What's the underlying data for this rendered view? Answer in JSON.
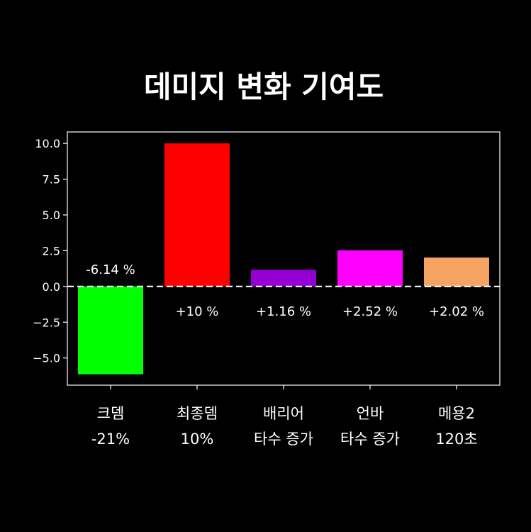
{
  "chart_data": {
    "type": "bar",
    "title": "데미지 변화 기여도",
    "xlabel": "",
    "ylabel": "",
    "categories": [
      [
        "크뎀",
        "-21%"
      ],
      [
        "최종뎀",
        "10%"
      ],
      [
        "배리어",
        "타수 증가"
      ],
      [
        "언바",
        "타수 증가"
      ],
      [
        "메용2",
        "120초"
      ]
    ],
    "values": [
      -6.14,
      10,
      1.16,
      2.52,
      2.02
    ],
    "data_labels": [
      "-6.14 %",
      "+10 %",
      "+1.16 %",
      "+2.52 %",
      "+2.02 %"
    ],
    "colors": [
      "#00ff00",
      "#ff0000",
      "#9400d3",
      "#ff00ff",
      "#f4a460"
    ],
    "ylim": [
      -6.9,
      10.8
    ],
    "yticks": [
      10.0,
      7.5,
      5.0,
      2.5,
      0.0,
      -2.5,
      -5.0
    ],
    "ytick_labels": [
      "10.0",
      "7.5",
      "5.0",
      "2.5",
      "0.0",
      "−2.5",
      "−5.0"
    ],
    "zero_line": "dashed white",
    "grid": false,
    "legend": "none",
    "background": "#000000",
    "text_color": "#ffffff"
  }
}
